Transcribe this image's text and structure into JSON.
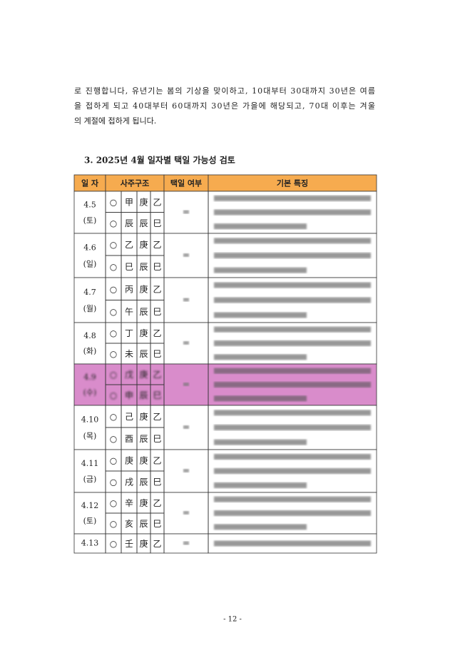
{
  "paragraph": [
    "로 진행합니다, 유년기는 봄의 기상을 맞이하고, 10대부터 30대까지 30년은 여름",
    "을 접하게 되고 40대부터 60대까지 30년은 가을에 해당되고, 70대 이후는 겨울",
    "의 계절에 접하게 됩니다."
  ],
  "heading": "3. 2025년 4월 일자별 택일 가능성 검토",
  "table": {
    "header": [
      "일 자",
      "사주구조",
      "택일 여부",
      "기본 특징"
    ],
    "rows": [
      {
        "date": "4.5",
        "weekday": "(토)",
        "top": [
          "○",
          "甲",
          "庚",
          "乙"
        ],
        "bottom": [
          "○",
          "辰",
          "辰",
          "巳"
        ]
      },
      {
        "date": "4.6",
        "weekday": "(일)",
        "top": [
          "○",
          "乙",
          "庚",
          "乙"
        ],
        "bottom": [
          "○",
          "巳",
          "辰",
          "巳"
        ]
      },
      {
        "date": "4.7",
        "weekday": "(월)",
        "top": [
          "○",
          "丙",
          "庚",
          "乙"
        ],
        "bottom": [
          "○",
          "午",
          "辰",
          "巳"
        ]
      },
      {
        "date": "4.8",
        "weekday": "(화)",
        "top": [
          "○",
          "丁",
          "庚",
          "乙"
        ],
        "bottom": [
          "○",
          "未",
          "辰",
          "巳"
        ]
      },
      {
        "date": "4.9",
        "weekday": "(수)",
        "top": [
          "○",
          "戊",
          "庚",
          "乙"
        ],
        "bottom": [
          "○",
          "申",
          "辰",
          "巳"
        ]
      },
      {
        "date": "4.10",
        "weekday": "(목)",
        "top": [
          "○",
          "己",
          "庚",
          "乙"
        ],
        "bottom": [
          "○",
          "酉",
          "辰",
          "巳"
        ]
      },
      {
        "date": "4.11",
        "weekday": "(금)",
        "top": [
          "○",
          "庚",
          "庚",
          "乙"
        ],
        "bottom": [
          "○",
          "戌",
          "辰",
          "巳"
        ]
      },
      {
        "date": "4.12",
        "weekday": "(토)",
        "top": [
          "○",
          "辛",
          "庚",
          "乙"
        ],
        "bottom": [
          "○",
          "亥",
          "辰",
          "巳"
        ]
      },
      {
        "date": "4.13",
        "top": [
          "○",
          "壬",
          "庚",
          "乙"
        ]
      }
    ]
  },
  "footer": "- 12 -"
}
